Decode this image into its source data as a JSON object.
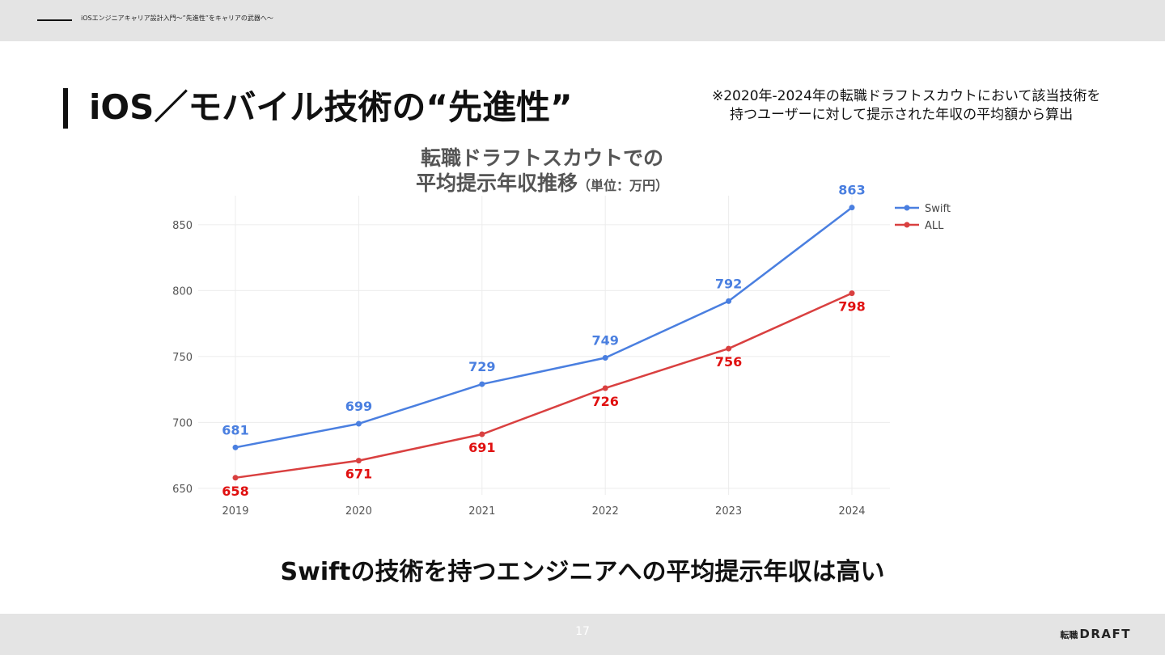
{
  "header": {
    "course_title": "iOSエンジニアキャリア設計入門〜”先進性”をキャリアの武器へ〜"
  },
  "slide": {
    "title": "iOS／モバイル技術の“先進性”",
    "note_line1": "※2020年-2024年の転職ドラフトスカウトにおいて該当技術を",
    "note_line2": "持つユーザーに対して提示された年収の平均額から算出",
    "conclusion": "Swiftの技術を持つエンジニアへの平均提示年収は高い"
  },
  "chart_data": {
    "type": "line",
    "title_line1": "転職ドラフトスカウトでの",
    "title_line2": "平均提示年収推移",
    "unit": "（単位：万円）",
    "x": [
      "2019",
      "2020",
      "2021",
      "2022",
      "2023",
      "2024"
    ],
    "series": [
      {
        "name": "Swift",
        "color": "#4a7fe0",
        "label_color": "#4a7fe0",
        "values": [
          681,
          699,
          729,
          749,
          792,
          863
        ],
        "label_position": "above"
      },
      {
        "name": "ALL",
        "color": "#d94040",
        "label_color": "#e01010",
        "values": [
          658,
          671,
          691,
          726,
          756,
          798
        ],
        "label_position": "below"
      }
    ],
    "yticks": [
      650,
      700,
      750,
      800,
      850
    ],
    "ylim": [
      645,
      872
    ],
    "grid": true,
    "legend": "top-right"
  },
  "footer": {
    "page_number": "17",
    "logo_kanji": "転職",
    "logo_word": "DRAFT"
  }
}
